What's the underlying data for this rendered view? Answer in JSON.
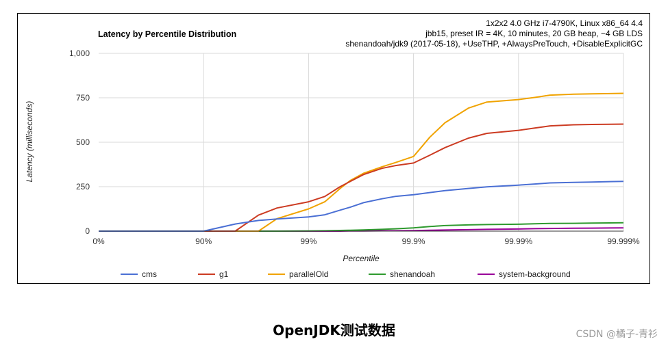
{
  "chart_data": {
    "type": "line",
    "title": "Latency by Percentile Distribution",
    "subtitle_lines": [
      "1x2x2 4.0 GHz i7-4790K, Linux x86_64 4.4",
      "jbb15, preset IR = 4K, 10 minutes, 20 GB heap, ~4 GB LDS",
      "shenandoah/jdk9 (2017-05-18), +UseTHP, +AlwaysPreTouch, +DisableExplicitGC"
    ],
    "xlabel": "Percentile",
    "ylabel": "Latency (milliseconds)",
    "x_scale": "log-percentile",
    "x_ticks": [
      "0%",
      "90%",
      "99%",
      "99.9%",
      "99.99%",
      "99.999%"
    ],
    "y_ticks": [
      "0",
      "250",
      "500",
      "750",
      "1,000"
    ],
    "ylim": [
      0,
      1000
    ],
    "grid": true,
    "legend_position": "bottom",
    "x": [
      0,
      90,
      95,
      97,
      98,
      99,
      99.3,
      99.5,
      99.6,
      99.7,
      99.8,
      99.85,
      99.9,
      99.93,
      99.95,
      99.97,
      99.98,
      99.99,
      99.993,
      99.995,
      99.997,
      99.998,
      99.999
    ],
    "series": [
      {
        "name": "cms",
        "color": "#4a6fd4",
        "values": [
          0,
          0,
          40,
          60,
          68,
          80,
          92,
          118,
          135,
          160,
          182,
          195,
          205,
          217,
          228,
          240,
          249,
          259,
          265,
          271,
          274,
          276,
          280
        ]
      },
      {
        "name": "g1",
        "color": "#cc3b22",
        "values": [
          0,
          0,
          0,
          90,
          130,
          165,
          195,
          250,
          280,
          318,
          353,
          368,
          383,
          427,
          470,
          523,
          550,
          567,
          580,
          592,
          598,
          600,
          602
        ]
      },
      {
        "name": "parallelOld",
        "color": "#f0a300",
        "values": [
          0,
          0,
          0,
          0,
          70,
          125,
          165,
          240,
          285,
          325,
          362,
          385,
          420,
          528,
          610,
          692,
          726,
          740,
          752,
          765,
          770,
          772,
          775
        ]
      },
      {
        "name": "shenandoah",
        "color": "#2e9a2e",
        "values": [
          0,
          0,
          0,
          0,
          0,
          1,
          2,
          4,
          5,
          7,
          10,
          13,
          18,
          26,
          31,
          35,
          37,
          39,
          41,
          43,
          44,
          45,
          47
        ]
      },
      {
        "name": "system-background",
        "color": "#990099",
        "values": [
          0,
          0,
          0,
          0,
          0,
          0,
          0,
          0,
          1,
          1,
          2,
          2,
          3,
          5,
          6,
          8,
          10,
          12,
          14,
          15,
          16,
          17,
          18
        ]
      }
    ]
  },
  "caption": "OpenJDK测试数据",
  "watermark": "CSDN @橘子-青衫"
}
